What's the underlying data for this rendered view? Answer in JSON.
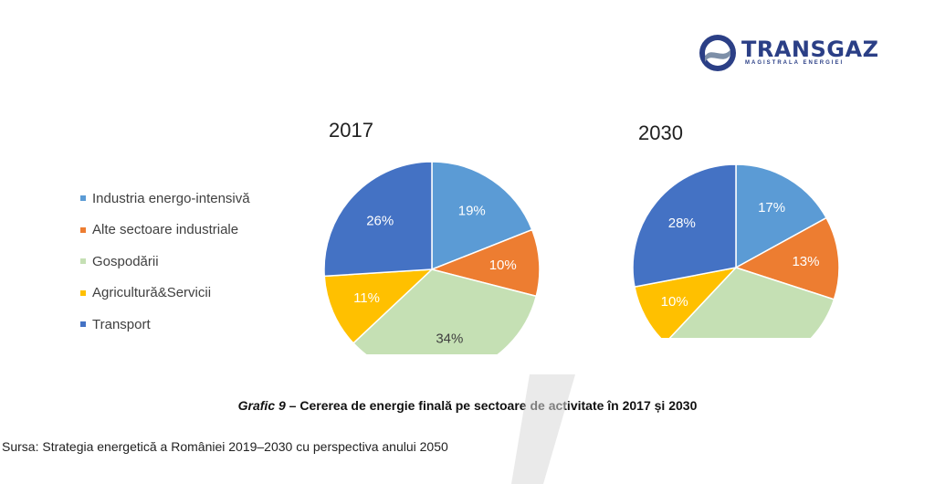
{
  "logo": {
    "name": "TRANSGAZ",
    "tagline": "MAGISTRALA ENERGIEI"
  },
  "legend": [
    "Industria energo-intensivă",
    "Alte sectoare industriale",
    "Gospodării",
    "Agricultură&Servicii",
    "Transport"
  ],
  "colors": [
    "#5b9bd5",
    "#ed7d31",
    "#c5e0b4",
    "#ffc000",
    "#4472c4"
  ],
  "chart_data": [
    {
      "type": "pie",
      "title": "2017",
      "categories": [
        "Industria energo-intensivă",
        "Alte sectoare industriale",
        "Gospodării",
        "Agricultură&Servicii",
        "Transport"
      ],
      "values": [
        19,
        10,
        34,
        11,
        26
      ],
      "labels": [
        "19%",
        "10%",
        "34%",
        "11%",
        "26%"
      ]
    },
    {
      "type": "pie",
      "title": "2030",
      "categories": [
        "Industria energo-intensivă",
        "Alte sectoare industriale",
        "Gospodării",
        "Agricultură&Servicii",
        "Transport"
      ],
      "values": [
        17,
        13,
        32,
        10,
        28
      ],
      "labels": [
        "17%",
        "13%",
        "",
        "10%",
        "28%"
      ]
    }
  ],
  "caption": {
    "prefix": "Grafic 9",
    "text": " – Cererea de energie finală pe sectoare de activitate în 2017 și 2030"
  },
  "source": "Sursa: Strategia energetică a României 2019–2030 cu perspectiva anului 2050"
}
